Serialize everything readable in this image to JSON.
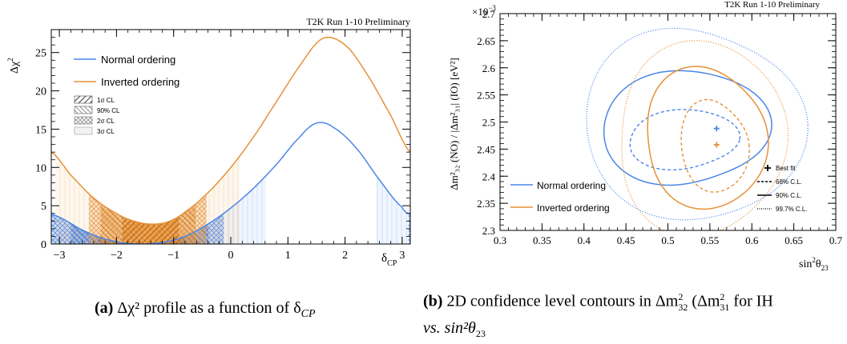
{
  "captions": {
    "a_label": "(a)",
    "a_text": "Δχ² profile as a function of δ",
    "a_sub": "CP",
    "b_label": "(b)",
    "b_text": "2D confidence level contours in Δm",
    "b_mid": " (Δm",
    "b_tail": " for IH",
    "b_line2": "vs. sin²θ",
    "b_line2_sub": "23",
    "b_sub1": "32",
    "b_sub2": "31",
    "sq": "2"
  },
  "chart_data": [
    {
      "type": "line",
      "title": "T2K Run 1-10 Preliminary",
      "xlabel": "δ",
      "xlabel_sub": "CP",
      "ylabel": "Δχ",
      "ylabel_sup": "2",
      "xlim": [
        -3.1416,
        3.1416
      ],
      "ylim": [
        0,
        28
      ],
      "xticks": [
        -3,
        -2,
        -1,
        0,
        1,
        2,
        3
      ],
      "yticks": [
        0,
        5,
        10,
        15,
        20,
        25
      ],
      "legend_position": "top-left",
      "series": [
        {
          "name": "Normal ordering",
          "color": "#4a86e8",
          "x": [
            -3.1416,
            -2.5,
            -2.0,
            -1.6,
            -1.2,
            -0.8,
            -0.4,
            0.0,
            0.4,
            0.8,
            1.2,
            1.5,
            1.8,
            2.2,
            2.6,
            3.0,
            3.1416
          ],
          "y": [
            3.9,
            1.5,
            0.3,
            0.0,
            0.2,
            1.0,
            2.6,
            4.7,
            7.3,
            10.4,
            13.9,
            15.8,
            15.2,
            12.5,
            8.4,
            4.8,
            3.9
          ]
        },
        {
          "name": "Inverted ordering",
          "color": "#e69138",
          "x": [
            -3.1416,
            -2.8,
            -2.4,
            -2.0,
            -1.7,
            -1.4,
            -1.1,
            -0.8,
            -0.4,
            0.0,
            0.4,
            0.8,
            1.2,
            1.6,
            2.0,
            2.4,
            2.8,
            3.1416
          ],
          "y": [
            12.0,
            9.0,
            6.0,
            4.0,
            3.0,
            2.6,
            2.9,
            4.2,
            6.7,
            10.0,
            14.0,
            18.6,
            23.2,
            26.8,
            26.0,
            22.0,
            16.8,
            12.0
          ]
        }
      ],
      "cl_legend": [
        "1σ CL",
        "90% CL",
        "2σ CL",
        "3σ CL"
      ]
    },
    {
      "type": "contour",
      "title": "T2K Run 1-10 Preliminary",
      "xlabel": "sin",
      "xlabel_tail": "θ",
      "xlabel_sub": "23",
      "ylabel": "Δm²₃₂ (NO) / |Δm²₃₁| (IO) [eV²]",
      "y_multiplier": "×10",
      "y_multiplier_exp": "−3",
      "xlim": [
        0.3,
        0.7
      ],
      "ylim": [
        2.3,
        2.7
      ],
      "xticks": [
        0.3,
        0.35,
        0.4,
        0.45,
        0.5,
        0.55,
        0.6,
        0.65,
        0.7
      ],
      "xticklabels": [
        "0.3",
        "0.35",
        "0.4",
        "0.45",
        "0.5",
        "0.55",
        "0.6",
        "0.65",
        "0.7"
      ],
      "yticks": [
        2.3,
        2.35,
        2.4,
        2.45,
        2.5,
        2.55,
        2.6,
        2.65,
        2.7
      ],
      "yticklabels": [
        "2.3",
        "2.35",
        "2.4",
        "2.45",
        "2.5",
        "2.55",
        "2.6",
        "2.65",
        "2.7"
      ],
      "best_fit": [
        {
          "name": "Normal ordering",
          "x": 0.558,
          "y": 2.488,
          "color": "#4a86e8"
        },
        {
          "name": "Inverted ordering",
          "x": 0.558,
          "y": 2.458,
          "color": "#e69138"
        }
      ],
      "legend_series": [
        "Normal ordering",
        "Inverted ordering"
      ],
      "legend_styles": [
        "Best fit",
        "68% C.L.",
        "90% C.L.",
        "99.7% C.L."
      ],
      "contours": [
        {
          "series": "Normal ordering",
          "level": "68% C.L.",
          "center": [
            0.518,
            2.468
          ],
          "rx": 0.065,
          "ry": 0.055
        },
        {
          "series": "Normal ordering",
          "level": "90% C.L.",
          "center": [
            0.52,
            2.49
          ],
          "rx": 0.095,
          "ry": 0.11
        },
        {
          "series": "Normal ordering",
          "level": "99.7% C.L.",
          "center": [
            0.53,
            2.495
          ],
          "rx": 0.125,
          "ry": 0.185
        },
        {
          "series": "Inverted ordering",
          "level": "68% C.L.",
          "center": [
            0.555,
            2.455
          ],
          "rx": 0.04,
          "ry": 0.085
        },
        {
          "series": "Inverted ordering",
          "level": "90% C.L.",
          "center": [
            0.545,
            2.47
          ],
          "rx": 0.075,
          "ry": 0.125
        },
        {
          "series": "Inverted ordering",
          "level": "99.7% C.L.",
          "center": [
            0.54,
            2.47
          ],
          "rx": 0.105,
          "ry": 0.17
        }
      ]
    }
  ]
}
